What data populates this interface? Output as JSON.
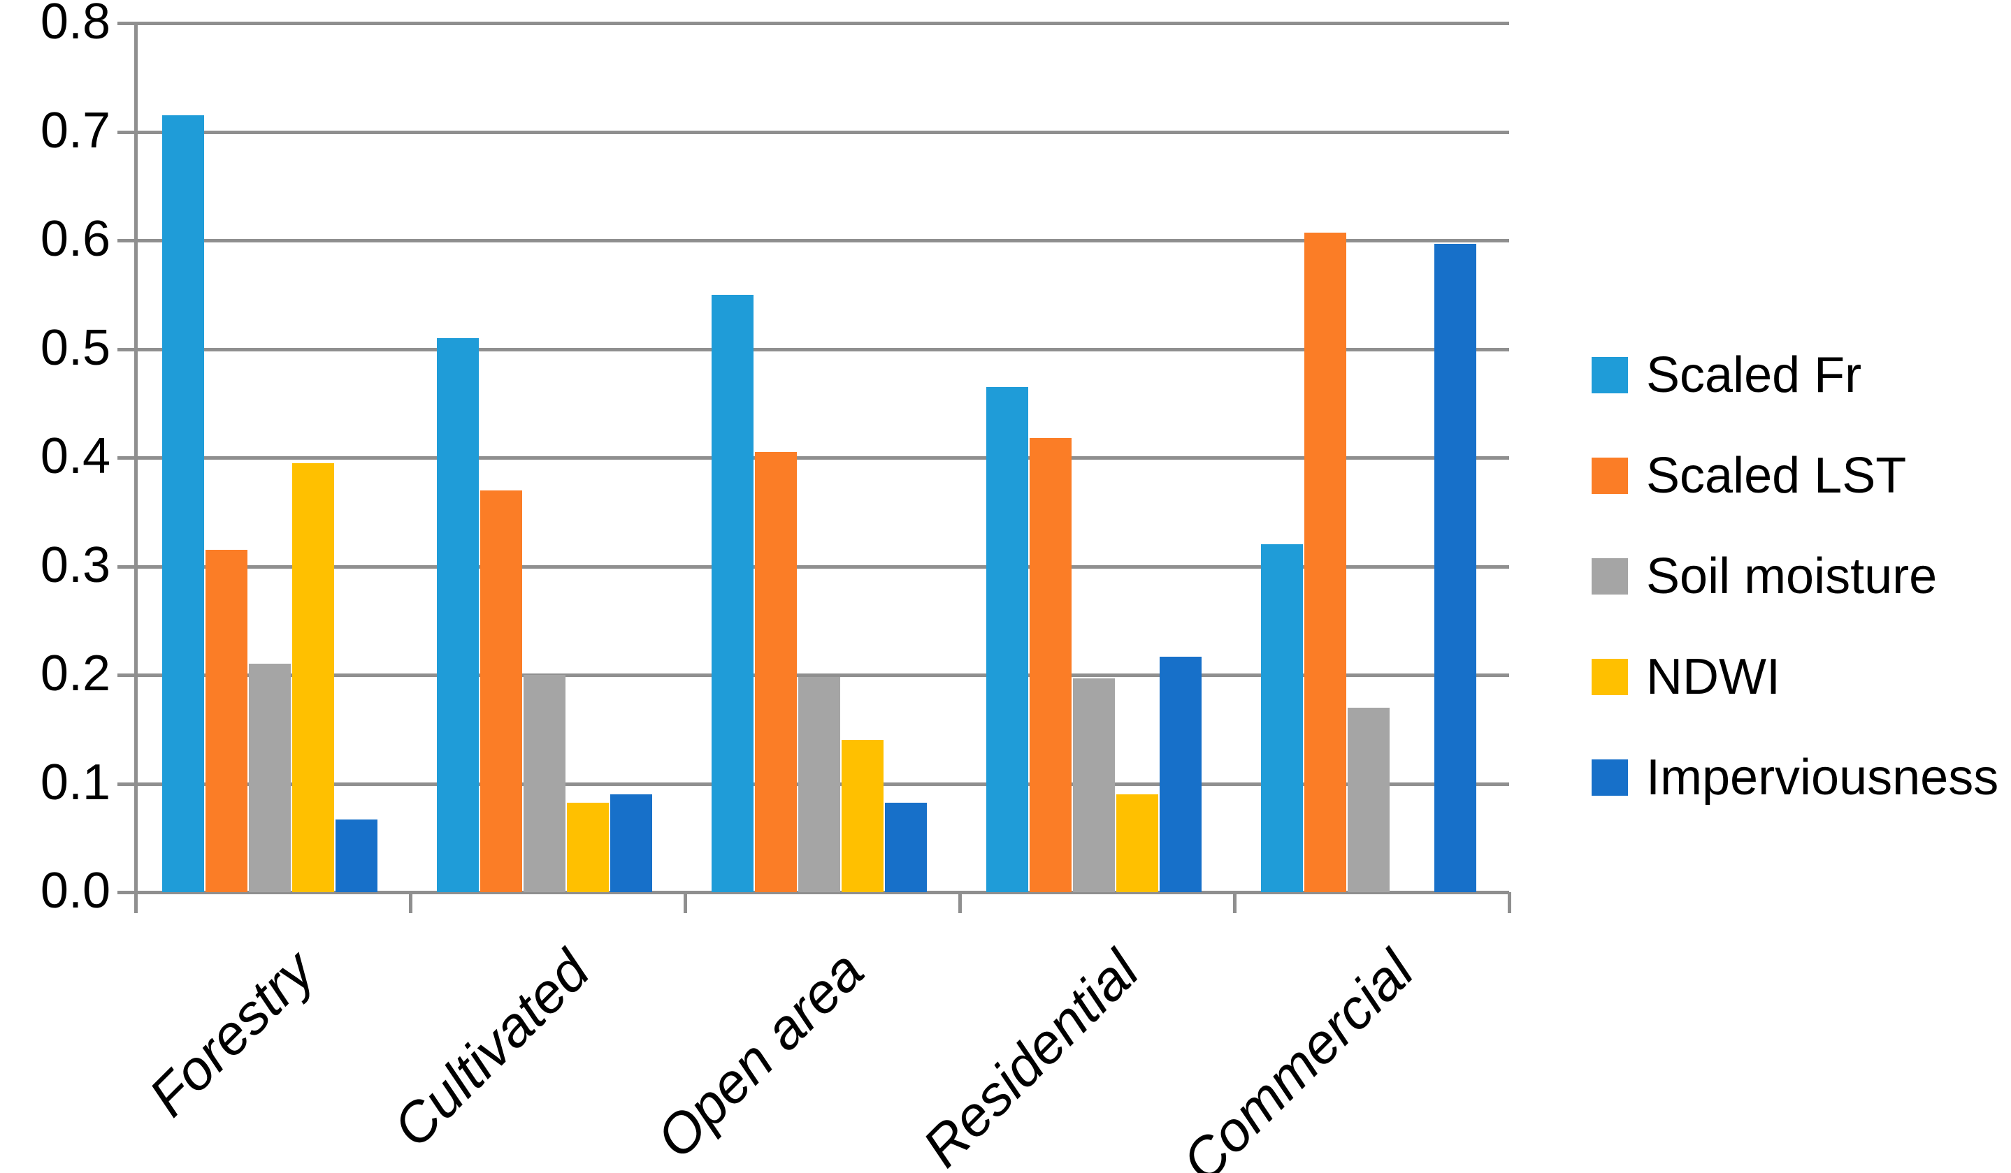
{
  "chart_data": {
    "type": "bar",
    "title": "",
    "categories": [
      "Forestry",
      "Cultivated",
      "Open area",
      "Residential",
      "Commercial"
    ],
    "series": [
      {
        "name": "Scaled Fr",
        "color": "#1F9CD8",
        "values": [
          0.715,
          0.51,
          0.55,
          0.465,
          0.32
        ]
      },
      {
        "name": "Scaled LST",
        "color": "#FB7D26",
        "values": [
          0.315,
          0.37,
          0.405,
          0.418,
          0.607
        ]
      },
      {
        "name": "Soil moisture",
        "color": "#A5A5A5",
        "values": [
          0.21,
          0.2,
          0.198,
          0.197,
          0.17
        ]
      },
      {
        "name": "NDWI",
        "color": "#FFC000",
        "values": [
          0.395,
          0.082,
          0.14,
          0.09,
          0.0
        ]
      },
      {
        "name": "Imperviousness",
        "color": "#1770C9",
        "values": [
          0.067,
          0.09,
          0.082,
          0.217,
          0.597
        ]
      }
    ],
    "xlabel": "",
    "ylabel": "",
    "ylim": [
      0.0,
      0.8
    ],
    "ytick_step": 0.1,
    "ytick_labels": [
      "0.0",
      "0.1",
      "0.2",
      "0.3",
      "0.4",
      "0.5",
      "0.6",
      "0.7",
      "0.8"
    ],
    "grid": true,
    "gridline_color": "#8F8F8F",
    "text_color": "#000000",
    "background_color": "#FFFFFF",
    "legend_position": "right",
    "bar_label_rotation_deg": -45
  }
}
